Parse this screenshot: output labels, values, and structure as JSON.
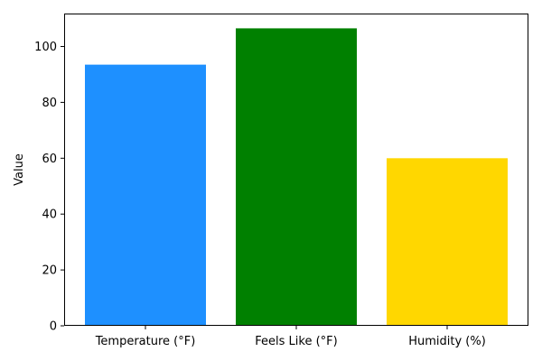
{
  "chart_data": {
    "type": "bar",
    "categories": [
      "Temperature (°F)",
      "Feels Like (°F)",
      "Humidity (%)"
    ],
    "values": [
      93.5,
      106.5,
      60
    ],
    "colors": [
      "#1e90ff",
      "#008000",
      "#ffd700"
    ],
    "title": "",
    "xlabel": "",
    "ylabel": "Value",
    "ylim": [
      0,
      111.8
    ],
    "yticks": [
      0,
      20,
      40,
      60,
      80,
      100
    ],
    "grid": false
  }
}
